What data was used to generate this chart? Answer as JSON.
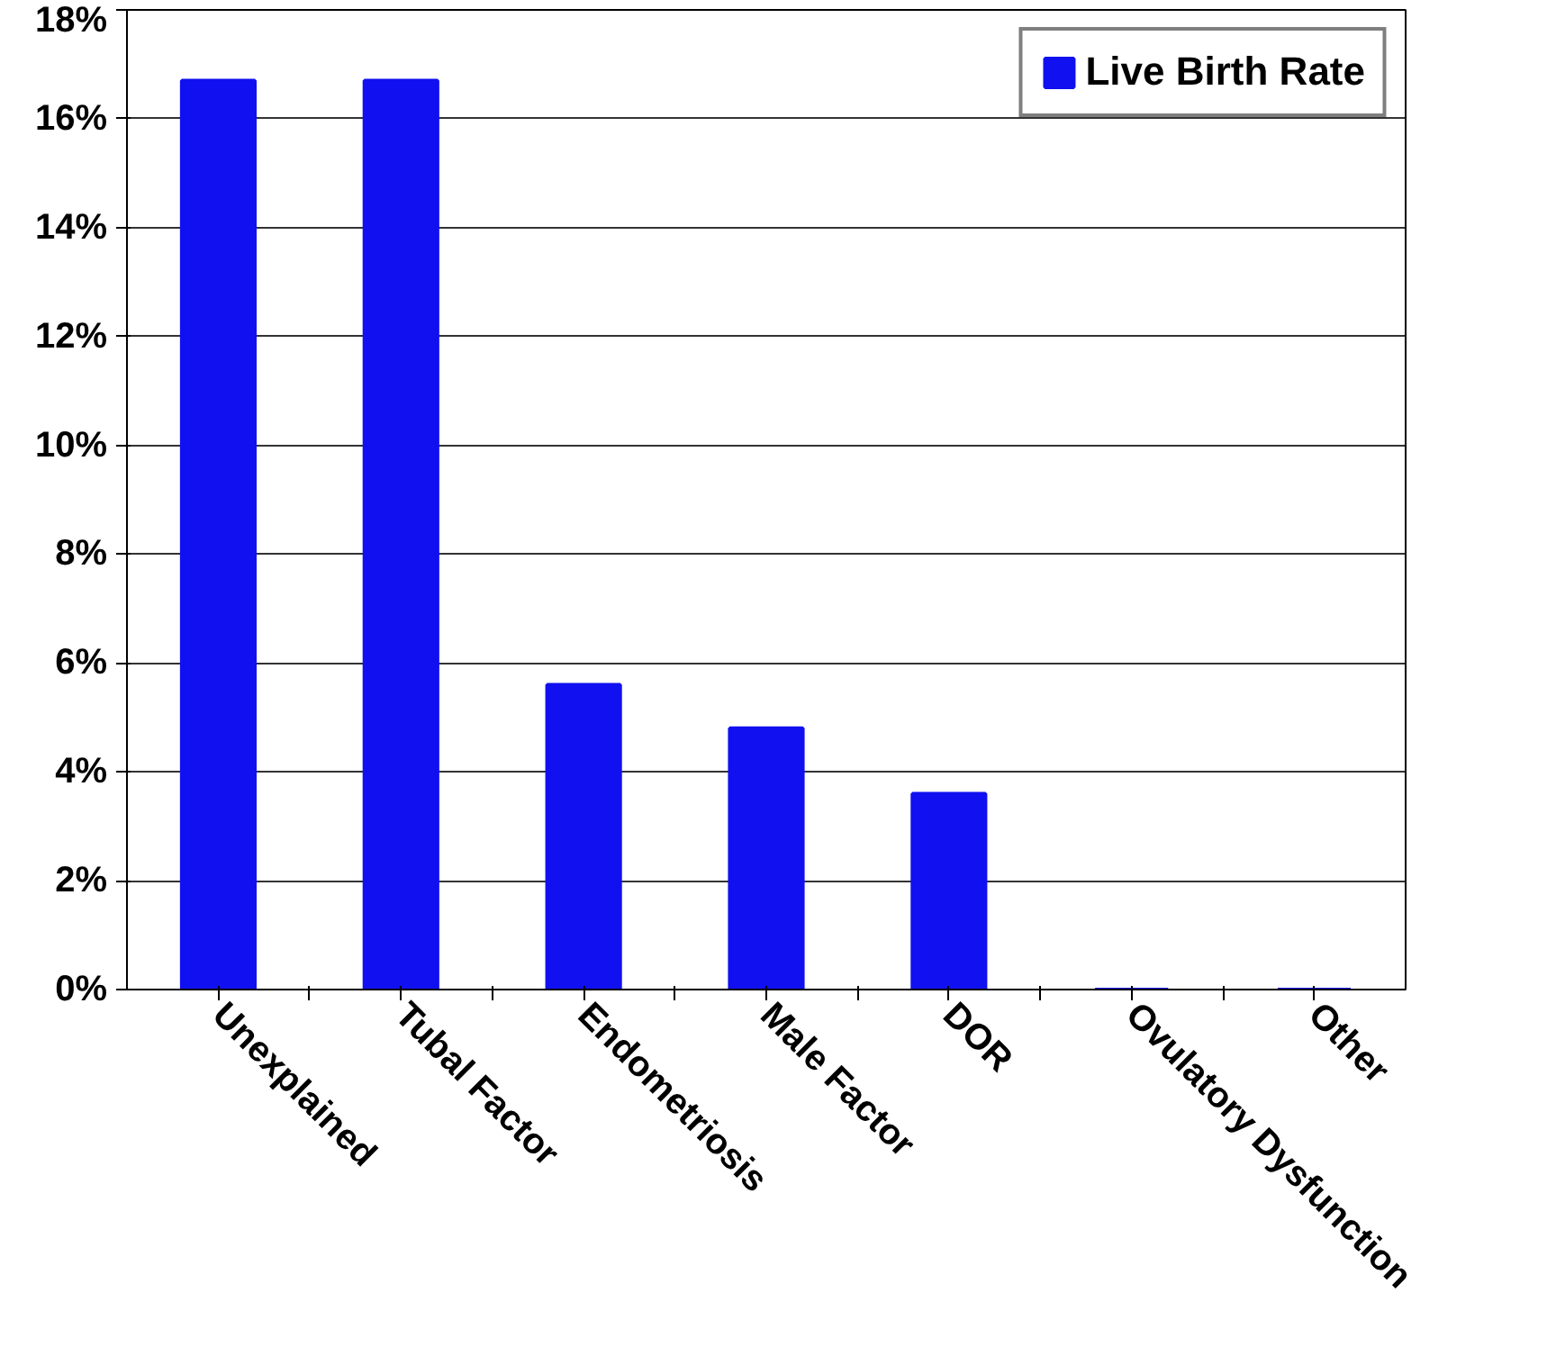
{
  "chart_data": {
    "type": "bar",
    "categories": [
      "Unexplained",
      "Tubal Factor",
      "Endometriosis",
      "Male Factor",
      "DOR",
      "Ovulatory Dysfunction",
      "Other"
    ],
    "series": [
      {
        "name": "Live Birth Rate",
        "color": "#1010f0",
        "values": [
          16.7,
          16.7,
          5.6,
          4.8,
          3.6,
          0,
          0
        ]
      }
    ],
    "ylim": [
      0,
      18
    ],
    "yticks": [
      {
        "value": 0,
        "label": "0%"
      },
      {
        "value": 2,
        "label": "2%"
      },
      {
        "value": 4,
        "label": "4%"
      },
      {
        "value": 6,
        "label": "6%"
      },
      {
        "value": 8,
        "label": "8%"
      },
      {
        "value": 10,
        "label": "10%"
      },
      {
        "value": 12,
        "label": "12%"
      },
      {
        "value": 14,
        "label": "14%"
      },
      {
        "value": 16,
        "label": "16%"
      },
      {
        "value": 18,
        "label": "18%"
      }
    ],
    "grid": "y",
    "legend": "top right"
  }
}
